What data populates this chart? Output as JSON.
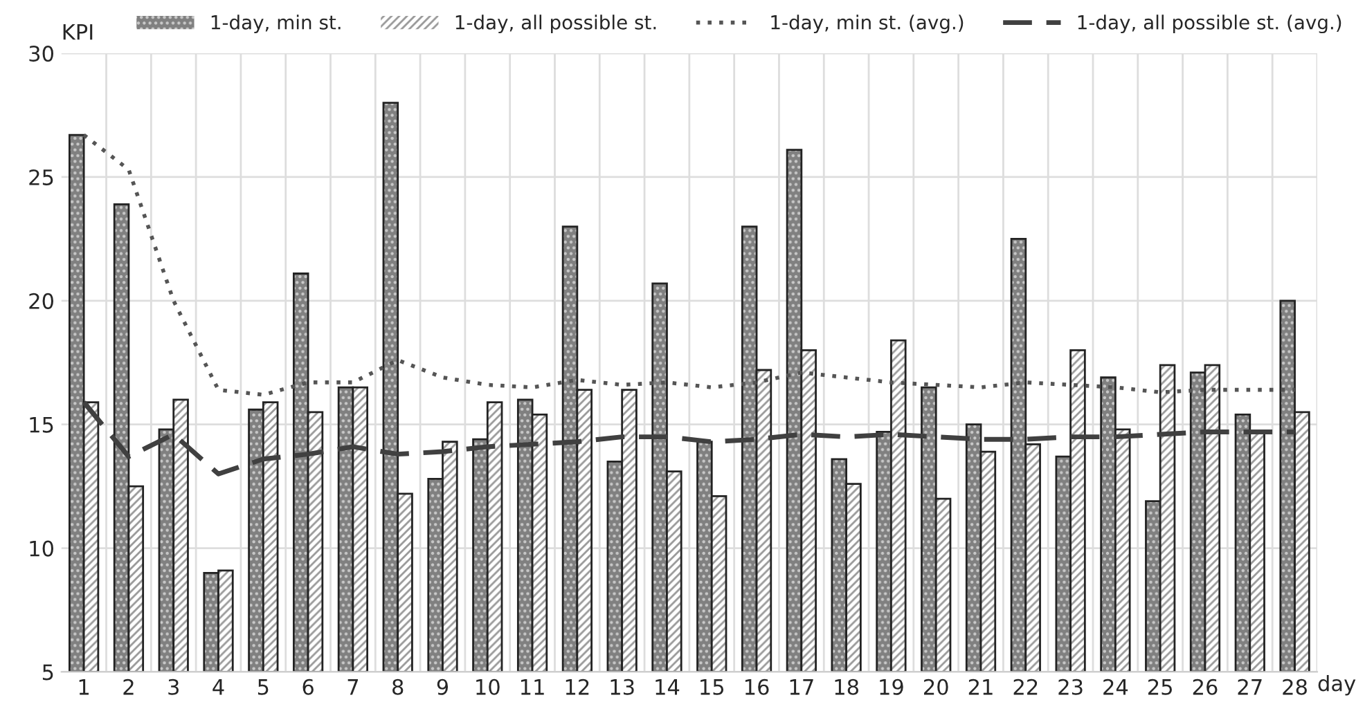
{
  "chart_data": {
    "type": "bar",
    "ylabel": "KPI",
    "xlabel": "day",
    "categories": [
      "1",
      "2",
      "3",
      "4",
      "5",
      "6",
      "7",
      "8",
      "9",
      "10",
      "11",
      "12",
      "13",
      "14",
      "15",
      "16",
      "17",
      "18",
      "19",
      "20",
      "21",
      "22",
      "23",
      "24",
      "25",
      "26",
      "27",
      "28"
    ],
    "series": [
      {
        "name": "1-day, min st.",
        "color": "#808080",
        "values": [
          26.7,
          23.9,
          14.8,
          9.0,
          15.6,
          21.1,
          16.5,
          28.0,
          12.8,
          14.4,
          16.0,
          23.0,
          13.5,
          20.7,
          14.3,
          23.0,
          26.1,
          13.6,
          14.7,
          16.5,
          15.0,
          22.5,
          13.7,
          16.9,
          11.9,
          17.1,
          15.4,
          20.0
        ]
      },
      {
        "name": "1-day, all possible st.",
        "color": "#ffffff",
        "values": [
          15.9,
          12.5,
          16.0,
          9.1,
          15.9,
          15.5,
          16.5,
          12.2,
          14.3,
          15.9,
          15.4,
          16.4,
          16.4,
          13.1,
          12.1,
          17.2,
          18.0,
          12.6,
          18.4,
          12.0,
          13.9,
          14.2,
          18.0,
          14.8,
          17.4,
          17.4,
          14.7,
          15.5
        ]
      },
      {
        "name": "1-day, min st. (avg.)",
        "type": "line",
        "line_style": "dotted",
        "color": "#555555",
        "values": [
          26.7,
          25.3,
          20.0,
          16.4,
          16.2,
          16.7,
          16.7,
          17.6,
          16.9,
          16.6,
          16.5,
          16.8,
          16.6,
          16.7,
          16.5,
          16.7,
          17.1,
          16.9,
          16.7,
          16.6,
          16.5,
          16.7,
          16.6,
          16.5,
          16.3,
          16.4,
          16.4,
          16.4
        ]
      },
      {
        "name": "1-day, all possible st. (avg.)",
        "type": "line",
        "line_style": "dashed",
        "color": "#404040",
        "values": [
          15.9,
          13.7,
          14.6,
          13.0,
          13.6,
          13.8,
          14.1,
          13.8,
          13.9,
          14.1,
          14.2,
          14.3,
          14.5,
          14.5,
          14.3,
          14.4,
          14.6,
          14.5,
          14.6,
          14.5,
          14.4,
          14.4,
          14.5,
          14.5,
          14.6,
          14.7,
          14.7,
          14.7
        ]
      }
    ],
    "ylim": [
      5,
      30
    ],
    "yticks": [
      5,
      10,
      15,
      20,
      25,
      30
    ],
    "grid": true,
    "legend": "top"
  }
}
